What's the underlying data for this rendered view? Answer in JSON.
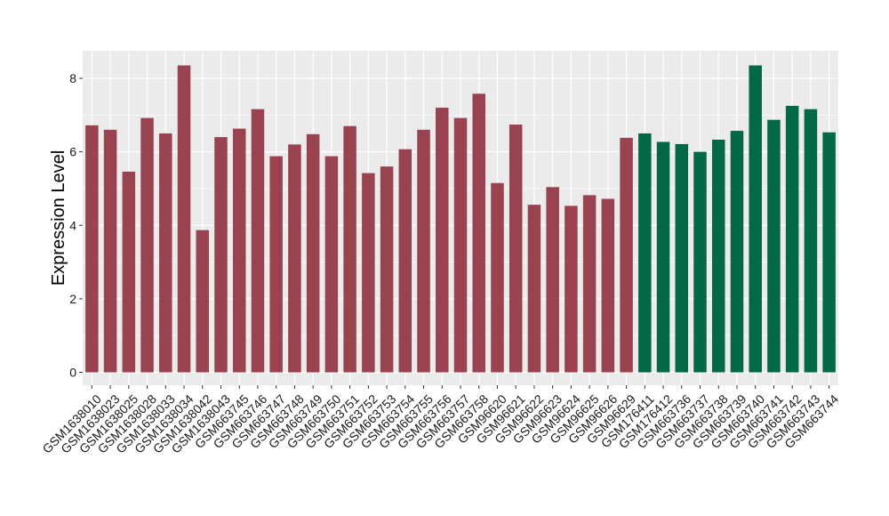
{
  "chart_data": {
    "type": "bar",
    "title": "",
    "xlabel": "",
    "ylabel": "Expression Level",
    "ylim": [
      -0.35,
      8.75
    ],
    "yticks": [
      0,
      2,
      4,
      6,
      8
    ],
    "grid": true,
    "legend": "none",
    "categories": [
      "GSM1638010",
      "GSM1638023",
      "GSM1638025",
      "GSM1638028",
      "GSM1638033",
      "GSM1638034",
      "GSM1638042",
      "GSM1638043",
      "GSM663745",
      "GSM663746",
      "GSM663747",
      "GSM663748",
      "GSM663749",
      "GSM663750",
      "GSM663751",
      "GSM663752",
      "GSM663753",
      "GSM663754",
      "GSM663755",
      "GSM663756",
      "GSM663757",
      "GSM663758",
      "GSM96620",
      "GSM96621",
      "GSM96622",
      "GSM96623",
      "GSM96624",
      "GSM96625",
      "GSM96626",
      "GSM96629",
      "GSM176411",
      "GSM176412",
      "GSM663736",
      "GSM663737",
      "GSM663738",
      "GSM663739",
      "GSM663740",
      "GSM663741",
      "GSM663742",
      "GSM663743",
      "GSM663744"
    ],
    "values": [
      6.72,
      6.6,
      5.46,
      6.92,
      6.5,
      8.35,
      3.87,
      6.4,
      6.63,
      7.16,
      5.88,
      6.2,
      6.48,
      5.88,
      6.7,
      5.42,
      5.6,
      6.07,
      6.6,
      7.2,
      6.92,
      7.58,
      5.15,
      6.74,
      4.56,
      5.04,
      4.53,
      4.82,
      4.72,
      6.38,
      6.5,
      6.27,
      6.21,
      6.0,
      6.33,
      6.57,
      8.35,
      6.87,
      7.25,
      7.16,
      6.53
    ],
    "bar_colors": [
      "#9a4350",
      "#9a4350",
      "#9a4350",
      "#9a4350",
      "#9a4350",
      "#9a4350",
      "#9a4350",
      "#9a4350",
      "#9a4350",
      "#9a4350",
      "#9a4350",
      "#9a4350",
      "#9a4350",
      "#9a4350",
      "#9a4350",
      "#9a4350",
      "#9a4350",
      "#9a4350",
      "#9a4350",
      "#9a4350",
      "#9a4350",
      "#9a4350",
      "#9a4350",
      "#9a4350",
      "#9a4350",
      "#9a4350",
      "#9a4350",
      "#9a4350",
      "#9a4350",
      "#9a4350",
      "#026845",
      "#026845",
      "#026845",
      "#026845",
      "#026845",
      "#026845",
      "#026845",
      "#026845",
      "#026845",
      "#026845",
      "#026845"
    ],
    "colors": {
      "panel_background": "#ebebeb",
      "grid": "#ffffff",
      "group_1": "#9a4350",
      "group_2": "#026845"
    }
  }
}
